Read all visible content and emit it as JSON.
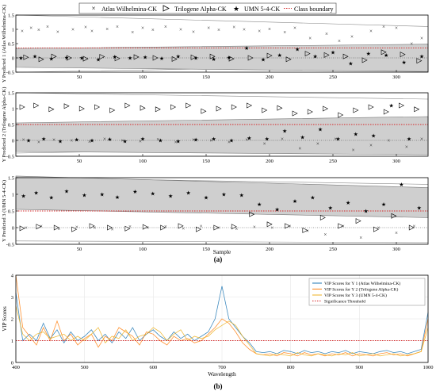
{
  "figure": {
    "panel_a_label": "(a)",
    "panel_b_label": "(b)"
  },
  "legend_a": [
    {
      "label": "Atlas Wilhelmina-CK",
      "marker": "x"
    },
    {
      "label": "Trilogene Alpha-CK",
      "marker": "triangle-right"
    },
    {
      "label": "UMN 5-4-CK",
      "marker": "star"
    },
    {
      "label": "Class boundary",
      "marker": "dotted-red"
    }
  ],
  "colors": {
    "band_fill": "#cfcfcf",
    "boundary": "#d62728",
    "vip1": "#1f77b4",
    "vip2": "#ff7f0e",
    "vip3": "#edb120",
    "threshold": "#d62728",
    "zero_line": "#444444"
  },
  "chart_data": [
    {
      "type": "scatter",
      "title": "",
      "xlabel": "",
      "ylabel": "Y Predicted 1 (Atlas Wilhelmina-CK)",
      "xlim": [
        0,
        325
      ],
      "ylim": [
        -0.5,
        1.5
      ],
      "yticks": [
        "-0.5",
        "0",
        "0.5",
        "1",
        "1.5"
      ],
      "xticks": [
        "50",
        "100",
        "150",
        "200",
        "250",
        "300"
      ],
      "class_boundary": 0.35,
      "band": {
        "x": [
          0,
          325
        ],
        "upper": [
          0.33,
          0.48
        ],
        "lower": [
          -0.33,
          -0.48
        ]
      },
      "outer_band": {
        "x": [
          0,
          325
        ],
        "upper": [
          1.5,
          1.1
        ],
        "lower": [
          -0.5,
          -0.25
        ]
      },
      "series": [
        {
          "name": "Atlas Wilhelmina-CK",
          "marker": "x",
          "x": [
            5,
            12,
            18,
            25,
            33,
            45,
            55,
            60,
            72,
            80,
            92,
            100,
            108,
            118,
            130,
            140,
            152,
            160,
            172,
            180,
            192,
            200,
            212,
            220,
            232,
            245,
            255,
            265,
            280,
            290,
            300,
            312,
            320
          ],
          "y": [
            0.95,
            1.05,
            0.98,
            1.1,
            0.92,
            1.0,
            1.08,
            0.95,
            1.02,
            1.1,
            0.9,
            1.05,
            0.98,
            1.1,
            1.0,
            0.92,
            1.05,
            0.98,
            1.08,
            1.0,
            0.95,
            1.02,
            0.9,
            1.05,
            0.7,
            0.85,
            0.6,
            0.75,
            0.95,
            1.1,
            1.05,
            0.5,
            0.7
          ]
        },
        {
          "name": "Trilogene Alpha-CK",
          "marker": "triangle-right",
          "x": [
            8,
            20,
            30,
            42,
            55,
            68,
            80,
            95,
            110,
            125,
            140,
            155,
            170,
            185,
            200,
            215,
            230,
            245,
            260,
            275,
            290,
            305,
            318
          ],
          "y": [
            0.02,
            -0.05,
            0.05,
            0.0,
            -0.03,
            0.04,
            -0.02,
            0.03,
            0.0,
            -0.04,
            0.02,
            0.05,
            -0.03,
            0.0,
            0.08,
            -0.05,
            0.15,
            0.1,
            0.05,
            -0.08,
            0.2,
            0.12,
            -0.1
          ]
        },
        {
          "name": "UMN 5-4-CK",
          "marker": "star",
          "x": [
            4,
            15,
            28,
            40,
            52,
            65,
            78,
            90,
            102,
            115,
            128,
            142,
            156,
            168,
            182,
            195,
            208,
            222,
            236,
            250,
            264,
            278,
            292,
            306,
            320
          ],
          "y": [
            0.0,
            0.05,
            -0.03,
            0.02,
            0.0,
            -0.05,
            0.04,
            0.0,
            0.03,
            -0.02,
            0.05,
            0.0,
            -0.04,
            0.02,
            0.35,
            -0.05,
            0.1,
            0.3,
            0.05,
            0.2,
            -0.2,
            0.15,
            0.1,
            -0.15,
            0.05
          ]
        }
      ]
    },
    {
      "type": "scatter",
      "title": "",
      "xlabel": "",
      "ylabel": "Y Predicted 2 (Trilogene Alpha-CK)",
      "xlim": [
        0,
        325
      ],
      "ylim": [
        -0.5,
        1.5
      ],
      "yticks": [
        "-0.5",
        "0",
        "0.5",
        "1",
        "1.5"
      ],
      "xticks": [
        "50",
        "100",
        "150",
        "200",
        "250",
        "300"
      ],
      "class_boundary": 0.5,
      "band": {
        "x": [
          0,
          325
        ],
        "upper": [
          0.55,
          0.75
        ],
        "lower": [
          -0.35,
          -0.45
        ]
      },
      "outer_band": {
        "x": [
          0,
          325
        ],
        "upper": [
          1.5,
          1.3
        ],
        "lower": [
          -0.4,
          -0.2
        ]
      },
      "series": [
        {
          "name": "Atlas Wilhelmina-CK",
          "marker": "x",
          "x": [
            6,
            18,
            30,
            44,
            58,
            70,
            84,
            98,
            112,
            126,
            140,
            154,
            168,
            182,
            196,
            210,
            224,
            238,
            252,
            266,
            280,
            294,
            308,
            320
          ],
          "y": [
            0.02,
            -0.05,
            0.03,
            0.0,
            -0.04,
            0.05,
            0.0,
            -0.03,
            0.04,
            -0.05,
            0.02,
            0.0,
            -0.05,
            0.03,
            -0.1,
            0.05,
            -0.25,
            -0.1,
            0.05,
            -0.3,
            -0.15,
            0.0,
            -0.2,
            0.05
          ]
        },
        {
          "name": "Trilogene Alpha-CK",
          "marker": "triangle-right",
          "x": [
            5,
            16,
            28,
            40,
            52,
            64,
            76,
            88,
            100,
            112,
            124,
            136,
            148,
            160,
            172,
            184,
            196,
            208,
            220,
            232,
            244,
            256,
            268,
            280,
            292,
            304,
            316
          ],
          "y": [
            1.05,
            1.1,
            0.98,
            1.08,
            1.0,
            1.05,
            0.95,
            1.1,
            1.02,
            0.98,
            1.05,
            1.1,
            0.92,
            1.0,
            1.05,
            1.1,
            0.95,
            1.02,
            0.85,
            0.9,
            1.0,
            0.8,
            0.95,
            1.05,
            0.9,
            1.1,
            0.98
          ]
        },
        {
          "name": "UMN 5-4-CK",
          "marker": "star",
          "x": [
            10,
            22,
            35,
            48,
            60,
            74,
            86,
            100,
            114,
            128,
            142,
            156,
            170,
            184,
            198,
            212,
            226,
            240,
            254,
            268,
            282,
            296,
            310
          ],
          "y": [
            0.0,
            0.05,
            -0.03,
            0.02,
            0.0,
            0.04,
            -0.02,
            0.05,
            0.0,
            -0.03,
            0.02,
            0.05,
            0.0,
            0.08,
            0.05,
            0.3,
            0.1,
            0.35,
            0.05,
            0.2,
            0.15,
            1.1,
            0.05
          ]
        }
      ]
    },
    {
      "type": "scatter",
      "title": "",
      "xlabel": "Sample",
      "ylabel": "Y Predicted 3 (UMN 5-4-CK)",
      "xlim": [
        0,
        325
      ],
      "ylim": [
        -0.5,
        1.5
      ],
      "yticks": [
        "-0.5",
        "0",
        "0.5",
        "1",
        "1.5"
      ],
      "xticks": [
        "50",
        "100",
        "150",
        "200",
        "250",
        "300"
      ],
      "class_boundary": 0.5,
      "band": {
        "x": [
          0,
          325
        ],
        "upper": [
          1.55,
          1.2
        ],
        "lower": [
          0.55,
          0.3
        ]
      },
      "outer_band": {
        "x": [
          0,
          325
        ],
        "upper": [
          1.5,
          1.3
        ],
        "lower": [
          -0.4,
          -0.45
        ]
      },
      "series": [
        {
          "name": "Atlas Wilhelmina-CK",
          "marker": "x",
          "x": [
            8,
            20,
            34,
            48,
            62,
            76,
            90,
            104,
            118,
            132,
            146,
            160,
            174,
            188,
            202,
            216,
            230,
            244,
            258,
            272,
            286,
            300,
            314
          ],
          "y": [
            0.0,
            0.05,
            -0.03,
            0.02,
            0.0,
            -0.05,
            0.04,
            0.0,
            0.03,
            -0.02,
            0.05,
            0.0,
            -0.04,
            0.02,
            0.0,
            0.05,
            -0.1,
            -0.2,
            0.05,
            -0.3,
            0.0,
            -0.15,
            0.05
          ]
        },
        {
          "name": "Trilogene Alpha-CK",
          "marker": "triangle-right",
          "x": [
            5,
            18,
            32,
            46,
            60,
            74,
            88,
            102,
            116,
            130,
            144,
            158,
            172,
            186,
            200,
            214,
            228,
            242,
            256,
            270,
            284,
            298,
            312
          ],
          "y": [
            -0.02,
            0.03,
            0.0,
            -0.05,
            0.05,
            0.0,
            -0.03,
            0.02,
            0.0,
            0.05,
            -0.05,
            0.0,
            0.03,
            0.4,
            0.1,
            0.05,
            -0.08,
            0.3,
            0.05,
            0.2,
            -0.05,
            0.35,
            0.0
          ]
        },
        {
          "name": "UMN 5-4-CK",
          "marker": "star",
          "x": [
            6,
            16,
            28,
            40,
            54,
            68,
            80,
            94,
            108,
            122,
            136,
            150,
            164,
            178,
            192,
            206,
            220,
            234,
            248,
            262,
            276,
            290,
            304,
            318
          ],
          "y": [
            0.95,
            1.05,
            0.9,
            1.1,
            0.98,
            1.0,
            0.92,
            1.08,
            1.02,
            0.95,
            1.05,
            0.9,
            1.0,
            0.98,
            0.7,
            0.55,
            0.8,
            0.9,
            0.6,
            0.75,
            0.5,
            0.7,
            1.3,
            0.6
          ]
        }
      ]
    },
    {
      "type": "line",
      "title": "",
      "xlabel": "Wavelength",
      "ylabel": "VIP Scores",
      "xlim": [
        400,
        1000
      ],
      "ylim": [
        0,
        4
      ],
      "yticks": [
        "0",
        "1",
        "2",
        "3",
        "4"
      ],
      "xticks": [
        "400",
        "500",
        "600",
        "700",
        "800",
        "900",
        "1000"
      ],
      "grid": true,
      "legend": "top-right",
      "threshold": {
        "name": "Significance Threshold",
        "value": 1.0
      },
      "x": [
        400,
        410,
        420,
        430,
        440,
        450,
        460,
        470,
        480,
        490,
        500,
        510,
        520,
        530,
        540,
        550,
        560,
        570,
        580,
        590,
        600,
        610,
        620,
        630,
        640,
        650,
        660,
        670,
        680,
        690,
        700,
        710,
        720,
        730,
        740,
        750,
        760,
        770,
        780,
        790,
        800,
        810,
        820,
        830,
        840,
        850,
        860,
        870,
        880,
        890,
        900,
        910,
        920,
        930,
        940,
        950,
        960,
        970,
        980,
        990,
        1000
      ],
      "series": [
        {
          "name": "VIP Scores for Y 1 (Atlas Wilhelmina-CK)",
          "values": [
            3.2,
            1.0,
            1.3,
            1.0,
            1.8,
            1.1,
            1.5,
            0.9,
            1.4,
            1.0,
            1.2,
            1.5,
            1.0,
            1.3,
            0.9,
            1.4,
            1.1,
            1.6,
            1.0,
            1.3,
            1.5,
            1.2,
            1.0,
            1.4,
            1.1,
            1.3,
            1.0,
            1.2,
            1.4,
            2.0,
            3.5,
            2.0,
            1.6,
            1.2,
            0.9,
            0.5,
            0.45,
            0.5,
            0.4,
            0.55,
            0.5,
            0.4,
            0.55,
            0.45,
            0.5,
            0.4,
            0.5,
            0.45,
            0.55,
            0.4,
            0.5,
            0.45,
            0.4,
            0.5,
            0.55,
            0.45,
            0.5,
            0.4,
            0.5,
            0.6,
            2.3
          ]
        },
        {
          "name": "VIP Scores for Y 2 (Trilogene Alpha-CK)",
          "values": [
            4.0,
            1.6,
            1.2,
            0.8,
            1.6,
            1.0,
            1.9,
            1.0,
            1.3,
            0.8,
            1.1,
            1.3,
            0.7,
            1.2,
            1.0,
            1.6,
            1.4,
            1.2,
            0.8,
            1.4,
            1.3,
            1.0,
            0.8,
            1.2,
            1.0,
            1.1,
            0.9,
            1.0,
            1.3,
            1.6,
            2.0,
            1.8,
            1.4,
            0.9,
            0.6,
            0.4,
            0.35,
            0.4,
            0.3,
            0.45,
            0.4,
            0.3,
            0.45,
            0.35,
            0.4,
            0.3,
            0.4,
            0.35,
            0.45,
            0.3,
            0.4,
            0.35,
            0.3,
            0.4,
            0.45,
            0.35,
            0.4,
            0.3,
            0.4,
            0.5,
            2.0
          ]
        },
        {
          "name": "VIP Scores for Y 3 (UMN 5-4-CK)",
          "values": [
            2.6,
            1.3,
            1.0,
            1.3,
            1.4,
            1.1,
            1.2,
            1.3,
            1.0,
            1.2,
            1.0,
            1.3,
            1.6,
            0.9,
            1.2,
            1.1,
            1.5,
            1.0,
            1.2,
            1.3,
            1.6,
            1.4,
            1.0,
            1.3,
            1.5,
            1.0,
            1.2,
            1.1,
            1.2,
            1.5,
            1.7,
            1.9,
            1.7,
            1.2,
            0.8,
            0.4,
            0.35,
            0.3,
            0.4,
            0.35,
            0.3,
            0.45,
            0.35,
            0.3,
            0.4,
            0.35,
            0.3,
            0.4,
            0.35,
            0.45,
            0.3,
            0.35,
            0.4,
            0.3,
            0.35,
            0.4,
            0.3,
            0.35,
            0.4,
            0.5,
            1.6
          ]
        }
      ]
    }
  ]
}
